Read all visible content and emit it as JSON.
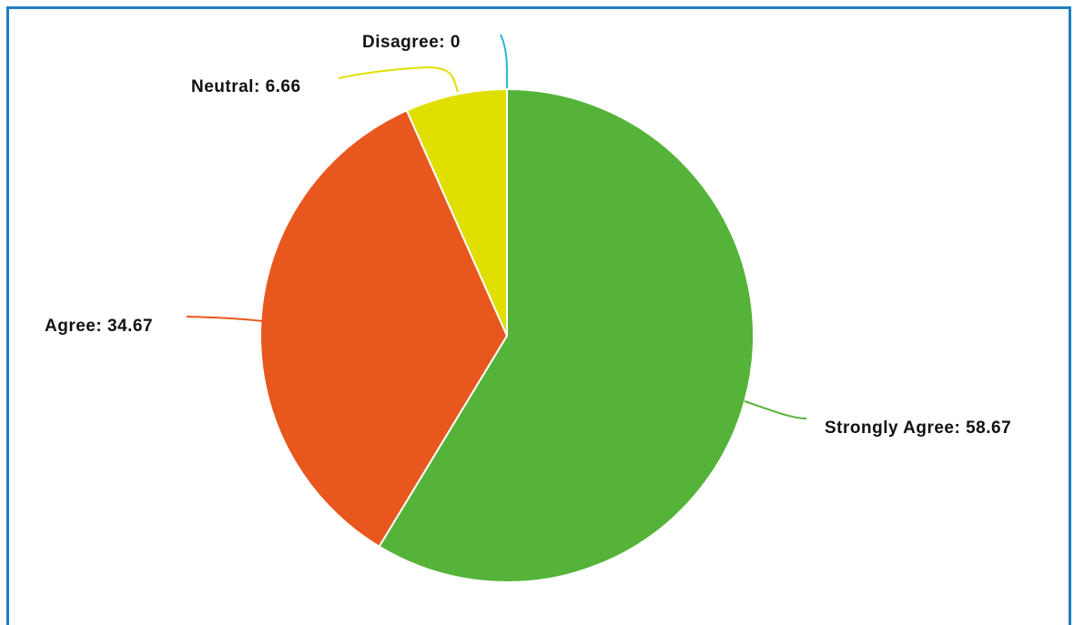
{
  "chart_data": {
    "type": "pie",
    "title": "",
    "labels": [
      "Strongly Agree",
      "Agree",
      "Neutral",
      "Disagree"
    ],
    "values": [
      58.67,
      34.67,
      6.66,
      0
    ],
    "display_labels": [
      "Strongly Agree: 58.67",
      "Agree: 34.67",
      "Neutral: 6.66",
      "Disagree: 0"
    ],
    "colors": [
      "#55b33a",
      "#e8571e",
      "#e0df00",
      "#27b8d6"
    ],
    "start": "top",
    "direction": "clockwise",
    "legend": "none",
    "data_labels": "outside with leader lines"
  }
}
